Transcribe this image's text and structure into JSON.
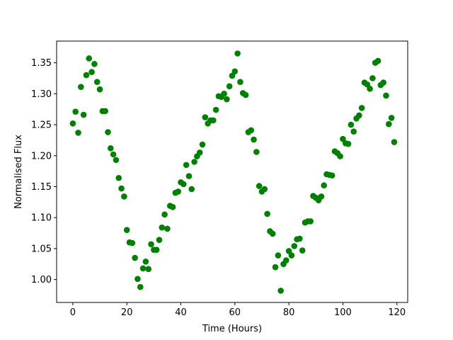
{
  "chart_data": {
    "type": "scatter",
    "xlabel": "Time (Hours)",
    "ylabel": "Normalised Flux",
    "xlim": [
      -6,
      124
    ],
    "ylim": [
      0.963,
      1.385
    ],
    "xticks": [
      0,
      20,
      40,
      60,
      80,
      100,
      120
    ],
    "yticks": [
      1.0,
      1.05,
      1.1,
      1.15,
      1.2,
      1.25,
      1.3,
      1.35
    ],
    "xtick_labels": [
      "0",
      "20",
      "40",
      "60",
      "80",
      "100",
      "120"
    ],
    "ytick_labels": [
      "1.00",
      "1.05",
      "1.10",
      "1.15",
      "1.20",
      "1.25",
      "1.30",
      "1.35"
    ],
    "grid": false,
    "marker_color": "#008000",
    "series": [
      {
        "points": [
          [
            0,
            1.252
          ],
          [
            1,
            1.271
          ],
          [
            2,
            1.237
          ],
          [
            3,
            1.311
          ],
          [
            4,
            1.266
          ],
          [
            5,
            1.33
          ],
          [
            6,
            1.357
          ],
          [
            7,
            1.335
          ],
          [
            8,
            1.348
          ],
          [
            9,
            1.319
          ],
          [
            10,
            1.307
          ],
          [
            11,
            1.272
          ],
          [
            12,
            1.272
          ],
          [
            13,
            1.238
          ],
          [
            14,
            1.212
          ],
          [
            15,
            1.202
          ],
          [
            16,
            1.193
          ],
          [
            17,
            1.164
          ],
          [
            18,
            1.147
          ],
          [
            19,
            1.134
          ],
          [
            20,
            1.08
          ],
          [
            21,
            1.06
          ],
          [
            22,
            1.059
          ],
          [
            23,
            1.035
          ],
          [
            24,
            1.001
          ],
          [
            25,
            0.988
          ],
          [
            26,
            1.018
          ],
          [
            27,
            1.029
          ],
          [
            28,
            1.017
          ],
          [
            29,
            1.057
          ],
          [
            30,
            1.048
          ],
          [
            31,
            1.048
          ],
          [
            32,
            1.064
          ],
          [
            33,
            1.084
          ],
          [
            34,
            1.105
          ],
          [
            35,
            1.082
          ],
          [
            36,
            1.119
          ],
          [
            37,
            1.117
          ],
          [
            38,
            1.14
          ],
          [
            39,
            1.142
          ],
          [
            40,
            1.157
          ],
          [
            41,
            1.154
          ],
          [
            42,
            1.185
          ],
          [
            43,
            1.167
          ],
          [
            44,
            1.146
          ],
          [
            45,
            1.19
          ],
          [
            46,
            1.199
          ],
          [
            47,
            1.205
          ],
          [
            48,
            1.218
          ],
          [
            49,
            1.262
          ],
          [
            50,
            1.252
          ],
          [
            51,
            1.257
          ],
          [
            52,
            1.257
          ],
          [
            53,
            1.274
          ],
          [
            54,
            1.296
          ],
          [
            55,
            1.295
          ],
          [
            56,
            1.3
          ],
          [
            57,
            1.291
          ],
          [
            58,
            1.312
          ],
          [
            59,
            1.329
          ],
          [
            60,
            1.336
          ],
          [
            61,
            1.365
          ],
          [
            62,
            1.319
          ],
          [
            63,
            1.301
          ],
          [
            64,
            1.298
          ],
          [
            65,
            1.238
          ],
          [
            66,
            1.241
          ],
          [
            67,
            1.226
          ],
          [
            68,
            1.206
          ],
          [
            69,
            1.151
          ],
          [
            70,
            1.142
          ],
          [
            71,
            1.146
          ],
          [
            72,
            1.106
          ],
          [
            73,
            1.078
          ],
          [
            74,
            1.074
          ],
          [
            75,
            1.02
          ],
          [
            76,
            1.039
          ],
          [
            77,
            0.982
          ],
          [
            78,
            1.025
          ],
          [
            79,
            1.031
          ],
          [
            80,
            1.046
          ],
          [
            81,
            1.039
          ],
          [
            82,
            1.054
          ],
          [
            83,
            1.065
          ],
          [
            84,
            1.066
          ],
          [
            85,
            1.047
          ],
          [
            86,
            1.092
          ],
          [
            87,
            1.094
          ],
          [
            88,
            1.094
          ],
          [
            89,
            1.135
          ],
          [
            90,
            1.132
          ],
          [
            91,
            1.128
          ],
          [
            92,
            1.134
          ],
          [
            93,
            1.152
          ],
          [
            94,
            1.17
          ],
          [
            95,
            1.169
          ],
          [
            96,
            1.168
          ],
          [
            97,
            1.207
          ],
          [
            98,
            1.204
          ],
          [
            99,
            1.199
          ],
          [
            100,
            1.227
          ],
          [
            101,
            1.22
          ],
          [
            102,
            1.219
          ],
          [
            103,
            1.25
          ],
          [
            104,
            1.239
          ],
          [
            105,
            1.26
          ],
          [
            106,
            1.265
          ],
          [
            107,
            1.277
          ],
          [
            108,
            1.318
          ],
          [
            109,
            1.315
          ],
          [
            110,
            1.308
          ],
          [
            111,
            1.325
          ],
          [
            112,
            1.35
          ],
          [
            113,
            1.353
          ],
          [
            114,
            1.314
          ],
          [
            115,
            1.318
          ],
          [
            116,
            1.297
          ],
          [
            117,
            1.251
          ],
          [
            118,
            1.261
          ],
          [
            119,
            1.222
          ]
        ]
      }
    ]
  }
}
